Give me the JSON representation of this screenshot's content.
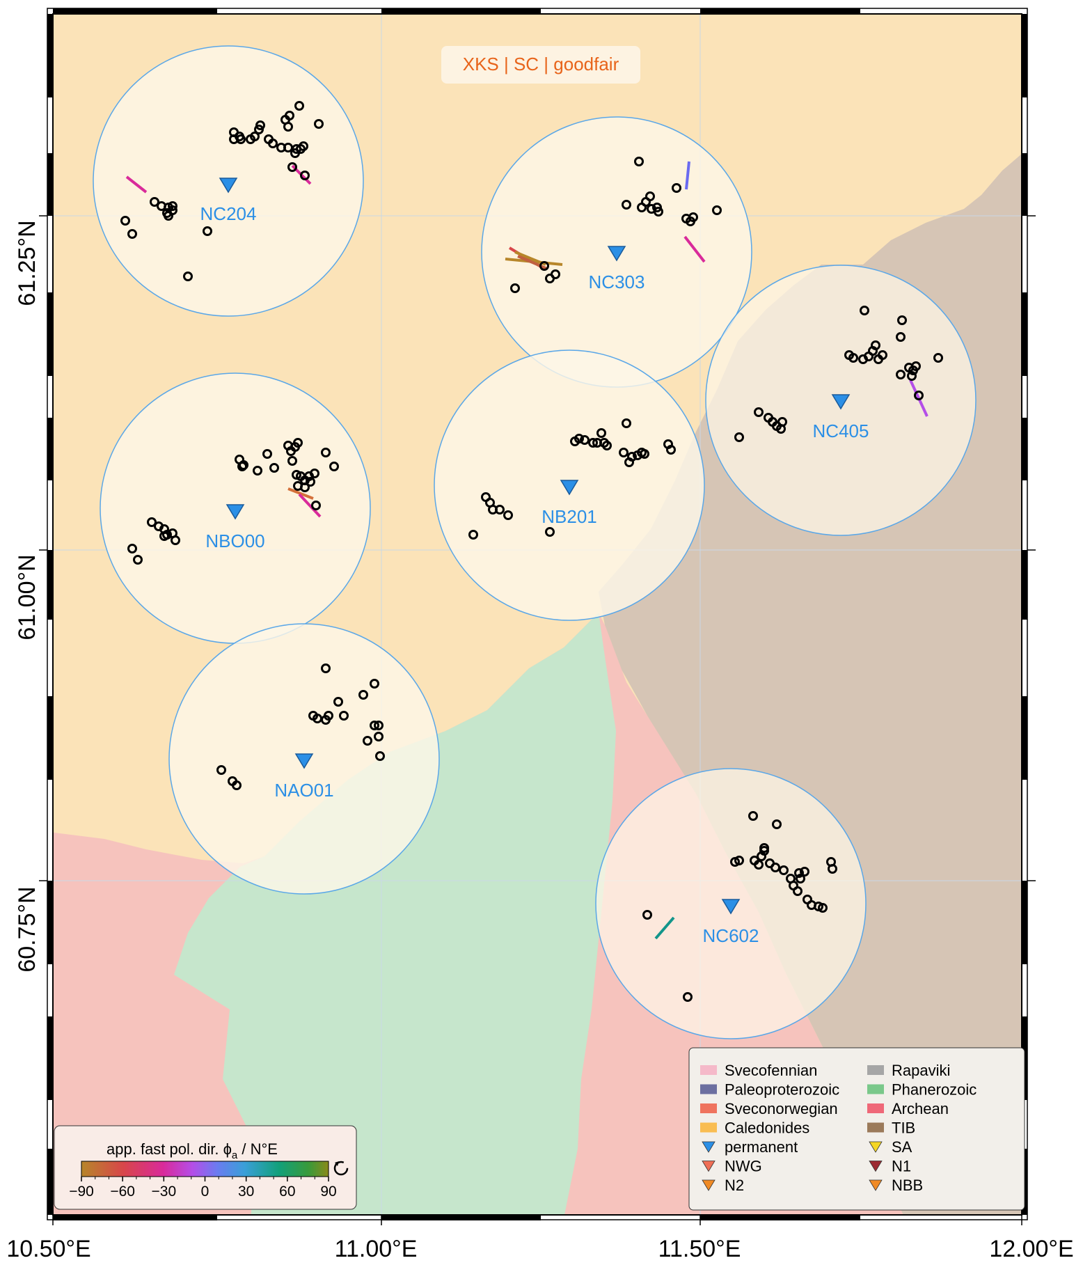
{
  "title": "XKS | SC | goodfair",
  "colors": {
    "title_text": "#e8641a",
    "station": "#2b8fe6",
    "circle_fill": "#fdf6e8",
    "circle_edge": "#5aa7e8",
    "svecofennian": "#f6c3bd",
    "phanerozoic": "#c6e6cc",
    "caledonides": "#fbe3b8",
    "tib": "#d6c5b5"
  },
  "axes": {
    "lon_labels": [
      "10.50°E",
      "11.00°E",
      "11.50°E",
      "12.00°E"
    ],
    "lat_labels": [
      "61.25°N",
      "61.00°N",
      "60.75°N"
    ]
  },
  "stations": [
    {
      "name": "NC204"
    },
    {
      "name": "NC303"
    },
    {
      "name": "NC405"
    },
    {
      "name": "NBO00"
    },
    {
      "name": "NB201"
    },
    {
      "name": "NAO01"
    },
    {
      "name": "NC602"
    }
  ],
  "legend": {
    "col1": [
      {
        "label": "Svecofennian",
        "color": "#f5b9c9",
        "icon": "rect"
      },
      {
        "label": "Paleoproterozoic",
        "color": "#6c6fa0",
        "icon": "rect"
      },
      {
        "label": "Sveconorwegian",
        "color": "#ef735e",
        "icon": "rect"
      },
      {
        "label": "Caledonides",
        "color": "#f9bd52",
        "icon": "rect"
      },
      {
        "label": "permanent",
        "color": "#2b8fe6",
        "icon": "triangle"
      },
      {
        "label": "NWG",
        "color": "#ef6e55",
        "icon": "triangle"
      },
      {
        "label": "N2",
        "color": "#f08a24",
        "icon": "triangle"
      }
    ],
    "col2": [
      {
        "label": "Rapaviki",
        "color": "#a6a6a6",
        "icon": "rect"
      },
      {
        "label": "Phanerozoic",
        "color": "#7ac88a",
        "icon": "rect"
      },
      {
        "label": "Archean",
        "color": "#ef6878",
        "icon": "rect"
      },
      {
        "label": "TIB",
        "color": "#9b7a5a",
        "icon": "rect"
      },
      {
        "label": "SA",
        "color": "#f5d624",
        "icon": "triangle"
      },
      {
        "label": "N1",
        "color": "#9c2a32",
        "icon": "triangle"
      },
      {
        "label": "NBB",
        "color": "#f08a24",
        "icon": "triangle"
      }
    ]
  },
  "colorbar": {
    "title": "app. fast pol. dir. ϕ",
    "subscript": "a",
    "unit": " / N°E",
    "ticks": [
      "−90",
      "−60",
      "−30",
      "0",
      "30",
      "60",
      "90"
    ],
    "cyclic_icon": "cyclic-arrow-icon"
  }
}
